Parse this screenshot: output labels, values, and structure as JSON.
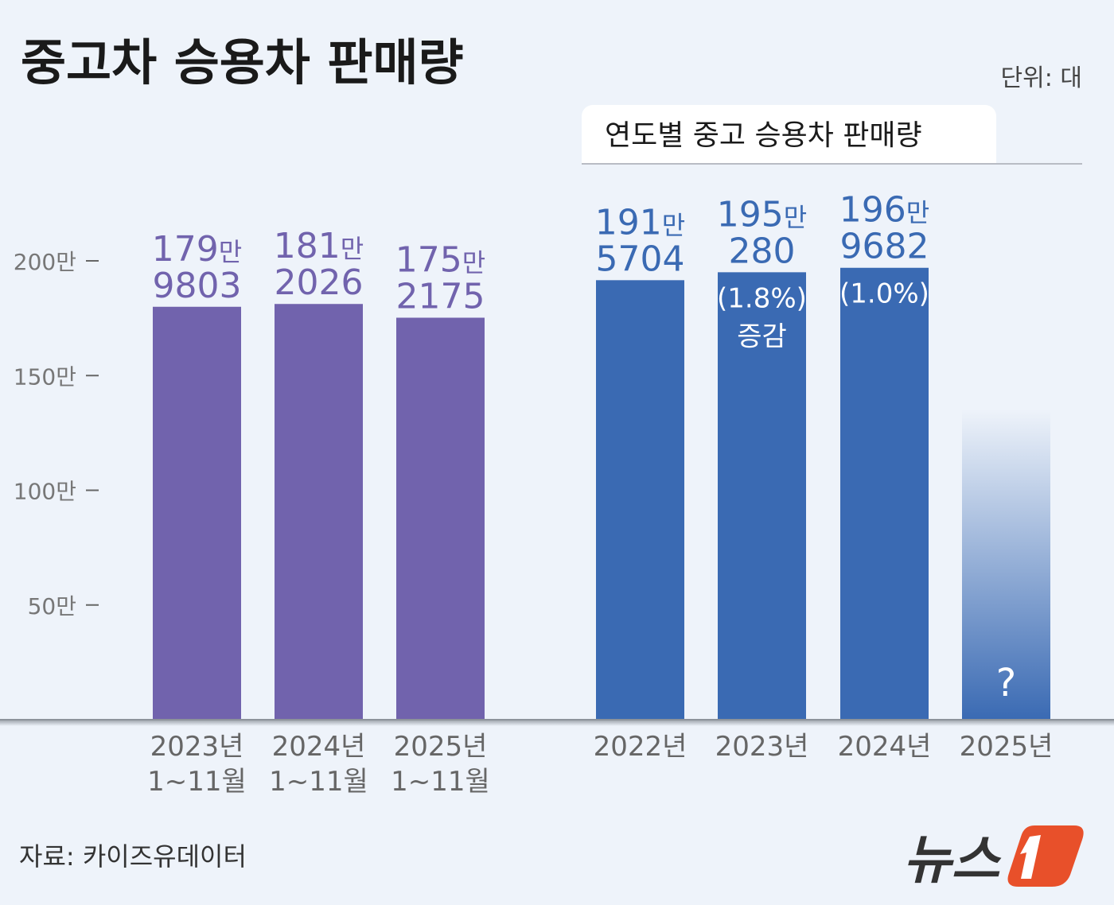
{
  "title": "중고차 승용차 판매량",
  "unit": "단위: 대",
  "source": "자료: 카이즈유데이터",
  "logo": {
    "text": "뉴스1",
    "color": "#e8502a"
  },
  "colors": {
    "left_bars": "#7163ad",
    "right_bars": "#3a6ab3",
    "background": "#eef3fa"
  },
  "chart_data": [
    {
      "type": "bar",
      "title": "",
      "ylim": [
        0,
        2000000
      ],
      "yticks": [
        {
          "value": 500000,
          "label": "50만"
        },
        {
          "value": 1000000,
          "label": "100만"
        },
        {
          "value": 1500000,
          "label": "150만"
        },
        {
          "value": 2000000,
          "label": "200만"
        }
      ],
      "categories": [
        [
          "2023년",
          "1~11월"
        ],
        [
          "2024년",
          "1~11월"
        ],
        [
          "2025년",
          "1~11월"
        ]
      ],
      "values": [
        1799803,
        1812026,
        1752175
      ],
      "data_labels": [
        [
          "179",
          "만",
          "9803"
        ],
        [
          "181",
          "만",
          "2026"
        ],
        [
          "175",
          "만",
          "2175"
        ]
      ]
    },
    {
      "type": "bar",
      "title": "연도별 중고 승용차 판매량",
      "ylim": [
        0,
        2000000
      ],
      "categories": [
        [
          "2022년"
        ],
        [
          "2023년"
        ],
        [
          "2024년"
        ],
        [
          "2025년"
        ]
      ],
      "values": [
        1915704,
        1950280,
        1969682,
        null
      ],
      "data_labels": [
        [
          "191",
          "만",
          "5704"
        ],
        [
          "195",
          "만",
          "280"
        ],
        [
          "196",
          "만",
          "9682"
        ],
        null
      ],
      "inner_labels": [
        [],
        [
          "(1.8%)",
          "증감"
        ],
        [
          "(1.0%)"
        ],
        [
          "?"
        ]
      ]
    }
  ]
}
